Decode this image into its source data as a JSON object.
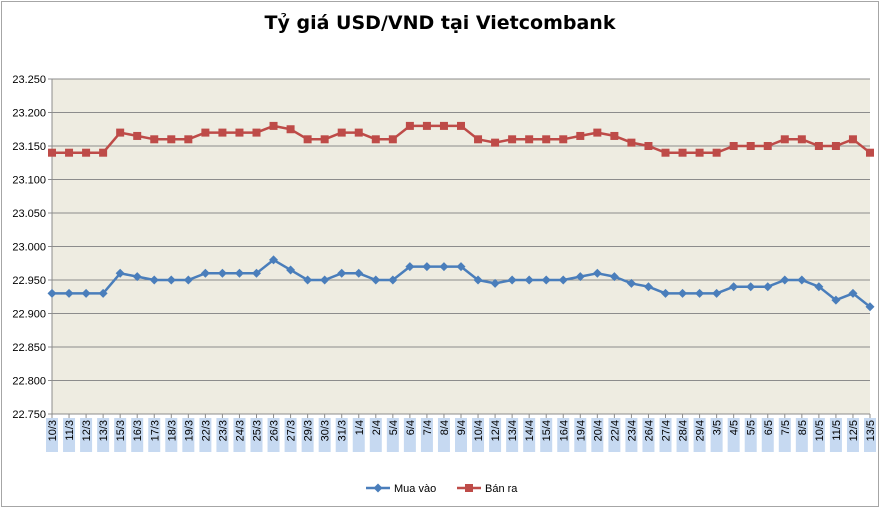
{
  "chart_data": {
    "type": "line",
    "title": "Tỷ giá USD/VND tại Vietcombank",
    "xlabel": "",
    "ylabel": "",
    "ylim": [
      22750,
      23250
    ],
    "y_ticks": [
      "22.750",
      "22.800",
      "22.850",
      "22.900",
      "22.950",
      "23.000",
      "23.050",
      "23.100",
      "23.150",
      "23.200",
      "23.250"
    ],
    "grid": true,
    "legend_position": "bottom",
    "plot_background": "#eeece1",
    "categories": [
      "10/3",
      "11/3",
      "12/3",
      "13/3",
      "15/3",
      "16/3",
      "17/3",
      "18/3",
      "19/3",
      "22/3",
      "23/3",
      "24/3",
      "25/3",
      "26/3",
      "27/3",
      "29/3",
      "30/3",
      "31/3",
      "1/4",
      "2/4",
      "5/4",
      "6/4",
      "7/4",
      "8/4",
      "9/4",
      "10/4",
      "12/4",
      "13/4",
      "14/4",
      "15/4",
      "16/4",
      "19/4",
      "20/4",
      "22/4",
      "23/4",
      "26/4",
      "27/4",
      "28/4",
      "29/4",
      "3/5",
      "4/5",
      "5/5",
      "6/5",
      "7/5",
      "8/5",
      "10/5",
      "11/5",
      "12/5",
      "13/5"
    ],
    "series": [
      {
        "name": "Mua vào",
        "color": "#4a7ebb",
        "marker": "diamond",
        "values": [
          22930,
          22930,
          22930,
          22930,
          22960,
          22955,
          22950,
          22950,
          22950,
          22960,
          22960,
          22960,
          22960,
          22980,
          22965,
          22950,
          22950,
          22960,
          22960,
          22950,
          22950,
          22970,
          22970,
          22970,
          22970,
          22950,
          22945,
          22950,
          22950,
          22950,
          22950,
          22955,
          22960,
          22955,
          22945,
          22940,
          22930,
          22930,
          22930,
          22930,
          22940,
          22940,
          22940,
          22950,
          22950,
          22940,
          22920,
          22930,
          22910
        ]
      },
      {
        "name": "Bán ra",
        "color": "#be4b48",
        "marker": "square",
        "values": [
          23140,
          23140,
          23140,
          23140,
          23170,
          23165,
          23160,
          23160,
          23160,
          23170,
          23170,
          23170,
          23170,
          23180,
          23175,
          23160,
          23160,
          23170,
          23170,
          23160,
          23160,
          23180,
          23180,
          23180,
          23180,
          23160,
          23155,
          23160,
          23160,
          23160,
          23160,
          23165,
          23170,
          23165,
          23155,
          23150,
          23140,
          23140,
          23140,
          23140,
          23150,
          23150,
          23150,
          23160,
          23160,
          23150,
          23150,
          23160,
          23140
        ]
      }
    ]
  }
}
